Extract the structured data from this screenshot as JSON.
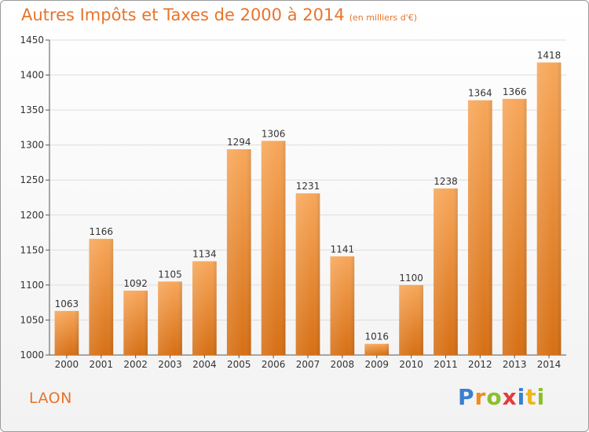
{
  "header": {
    "title": "Autres Impôts et Taxes de 2000 à 2014",
    "subtitle": "(en milliers d'€)"
  },
  "footer": {
    "city": "LAON",
    "logo_letters": [
      "P",
      "r",
      "o",
      "x",
      "i",
      "t",
      "i"
    ],
    "logo_colors": [
      "#3a7fd0",
      "#f08a1c",
      "#8bbf2a",
      "#e23b3b",
      "#3a7fd0",
      "#f0b41c",
      "#8bbf2a"
    ]
  },
  "colors": {
    "bar_light": "#f7a75a",
    "bar_dark": "#d66f14",
    "title": "#e8742a",
    "grid": "#dddddd"
  },
  "chart_data": {
    "type": "bar",
    "categories": [
      "2000",
      "2001",
      "2002",
      "2003",
      "2004",
      "2005",
      "2006",
      "2007",
      "2008",
      "2009",
      "2010",
      "2011",
      "2012",
      "2013",
      "2014"
    ],
    "values": [
      1063,
      1166,
      1092,
      1105,
      1134,
      1294,
      1306,
      1231,
      1141,
      1016,
      1100,
      1238,
      1364,
      1366,
      1418
    ],
    "ylim": [
      1000,
      1450
    ],
    "yticks": [
      1000,
      1050,
      1100,
      1150,
      1200,
      1250,
      1300,
      1350,
      1400,
      1450
    ],
    "grid": true,
    "data_labels": true
  }
}
